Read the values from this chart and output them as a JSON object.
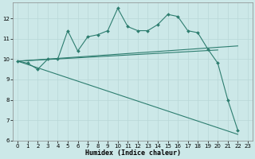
{
  "xlabel": "Humidex (Indice chaleur)",
  "background_color": "#cce8e8",
  "line_color": "#2d7d6f",
  "x": [
    0,
    1,
    2,
    3,
    4,
    5,
    6,
    7,
    8,
    9,
    10,
    11,
    12,
    13,
    14,
    15,
    16,
    17,
    18,
    19,
    20,
    21,
    22,
    23
  ],
  "line1": [
    9.9,
    9.8,
    9.5,
    10.0,
    10.0,
    11.4,
    10.4,
    11.1,
    11.2,
    11.4,
    12.5,
    11.6,
    11.4,
    11.4,
    11.7,
    12.2,
    12.1,
    11.4,
    11.3,
    10.5,
    9.8,
    8.0,
    6.5,
    null
  ],
  "line2_x": [
    0,
    22
  ],
  "line2_y": [
    9.9,
    10.65
  ],
  "line3_x": [
    0,
    20
  ],
  "line3_y": [
    9.9,
    10.45
  ],
  "line4_x": [
    0,
    22
  ],
  "line4_y": [
    9.9,
    6.3
  ],
  "ylim": [
    6,
    12.8
  ],
  "xlim": [
    -0.5,
    23.5
  ],
  "yticks": [
    6,
    7,
    8,
    9,
    10,
    11,
    12
  ],
  "xticks": [
    0,
    1,
    2,
    3,
    4,
    5,
    6,
    7,
    8,
    9,
    10,
    11,
    12,
    13,
    14,
    15,
    16,
    17,
    18,
    19,
    20,
    21,
    22,
    23
  ],
  "tick_fontsize": 5.0,
  "xlabel_fontsize": 6.0,
  "grid_color": "#b8d8d8",
  "spine_color": "#888888"
}
